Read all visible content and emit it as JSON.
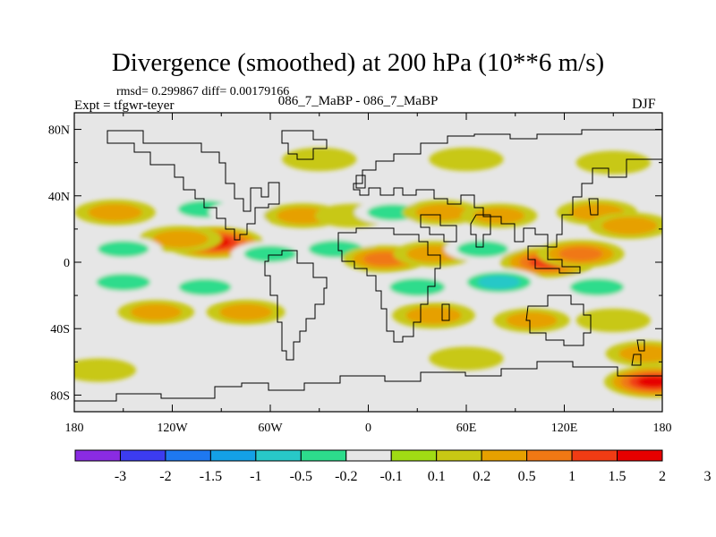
{
  "chart_data": {
    "type": "heatmap",
    "title": "Divergence (smoothed) at 200 hPa (10**6 m/s)",
    "stats_line": "rmsd= 0.299867 diff= 0.00179166",
    "experiment_label": "Expt = tfgwr-teyer",
    "case_label": "086_7_MaBP - 086_7_MaBP",
    "season": "DJF",
    "x_axis": {
      "range": [
        -180,
        180
      ],
      "ticks": [
        -180,
        -120,
        -60,
        0,
        60,
        120,
        180
      ],
      "tick_labels": [
        "180",
        "120W",
        "60W",
        "0",
        "60E",
        "120E",
        "180"
      ]
    },
    "y_axis": {
      "range": [
        -90,
        90
      ],
      "ticks": [
        80,
        40,
        0,
        -40,
        -80
      ],
      "tick_labels": [
        "80N",
        "40N",
        "0",
        "40S",
        "80S"
      ]
    },
    "colorbar": {
      "colors": [
        "#8a2be2",
        "#3c3cf0",
        "#1e78f0",
        "#14a0e6",
        "#28c8c8",
        "#2ddc8c",
        "#e6e6e6",
        "#a0dc14",
        "#c8c814",
        "#e6a000",
        "#f07814",
        "#f03c14",
        "#e60000"
      ],
      "labels": [
        "-3",
        "-2",
        "-1.5",
        "-1",
        "-0.5",
        "-0.2",
        "-0.1",
        "0.1",
        "0.2",
        "0.5",
        "1",
        "1.5",
        "2",
        "3"
      ]
    },
    "features": [
      {
        "lon": -95,
        "lat": 12,
        "value": 1.8
      },
      {
        "lon": -115,
        "lat": 14,
        "value": 0.7
      },
      {
        "lon": -155,
        "lat": 30,
        "value": 0.6
      },
      {
        "lon": -100,
        "lat": 32,
        "value": -0.6
      },
      {
        "lon": -75,
        "lat": 30,
        "value": -0.3
      },
      {
        "lon": -40,
        "lat": 28,
        "value": 0.5
      },
      {
        "lon": -10,
        "lat": 28,
        "value": 0.3
      },
      {
        "lon": 15,
        "lat": 30,
        "value": -0.4
      },
      {
        "lon": 45,
        "lat": 30,
        "value": 0.5
      },
      {
        "lon": 80,
        "lat": 28,
        "value": 0.4
      },
      {
        "lon": 140,
        "lat": 30,
        "value": 0.6
      },
      {
        "lon": 160,
        "lat": 22,
        "value": 0.7
      },
      {
        "lon": -60,
        "lat": 5,
        "value": -0.5
      },
      {
        "lon": -20,
        "lat": 8,
        "value": -0.6
      },
      {
        "lon": 10,
        "lat": 2,
        "value": 0.8
      },
      {
        "lon": 40,
        "lat": 5,
        "value": 0.6
      },
      {
        "lon": 70,
        "lat": 8,
        "value": -0.4
      },
      {
        "lon": 110,
        "lat": 0,
        "value": 1.3
      },
      {
        "lon": 130,
        "lat": 5,
        "value": 0.9
      },
      {
        "lon": -150,
        "lat": 8,
        "value": -0.4
      },
      {
        "lon": -150,
        "lat": -12,
        "value": -0.6
      },
      {
        "lon": -100,
        "lat": -15,
        "value": -0.5
      },
      {
        "lon": -30,
        "lat": -12,
        "value": -0.3
      },
      {
        "lon": 30,
        "lat": -15,
        "value": -0.7
      },
      {
        "lon": 80,
        "lat": -12,
        "value": -0.8
      },
      {
        "lon": 140,
        "lat": -15,
        "value": -0.6
      },
      {
        "lon": -130,
        "lat": -30,
        "value": 0.4
      },
      {
        "lon": -75,
        "lat": -30,
        "value": 0.5
      },
      {
        "lon": 40,
        "lat": -32,
        "value": 0.7
      },
      {
        "lon": 100,
        "lat": -35,
        "value": 0.4
      },
      {
        "lon": 150,
        "lat": -35,
        "value": 0.3
      },
      {
        "lon": 170,
        "lat": -55,
        "value": 0.6
      },
      {
        "lon": 60,
        "lat": -58,
        "value": 0.3
      },
      {
        "lon": -165,
        "lat": -65,
        "value": 0.3
      },
      {
        "lon": -60,
        "lat": -65,
        "value": -0.3
      },
      {
        "lon": -30,
        "lat": 62,
        "value": 0.3
      },
      {
        "lon": 60,
        "lat": 62,
        "value": 0.3
      },
      {
        "lon": 150,
        "lat": 60,
        "value": 0.3
      },
      {
        "lon": 175,
        "lat": -72,
        "value": 2.0
      }
    ]
  }
}
